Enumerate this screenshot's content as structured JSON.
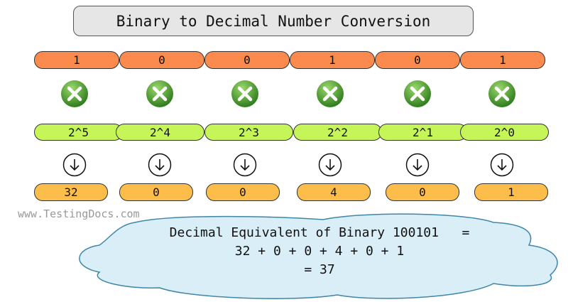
{
  "title": "Binary to Decimal Number Conversion",
  "columns": [
    {
      "bit": "1",
      "power": "2^5",
      "value": "32"
    },
    {
      "bit": "0",
      "power": "2^4",
      "value": "0"
    },
    {
      "bit": "0",
      "power": "2^3",
      "value": "0"
    },
    {
      "bit": "1",
      "power": "2^2",
      "value": "4"
    },
    {
      "bit": "0",
      "power": "2^1",
      "value": "0"
    },
    {
      "bit": "1",
      "power": "2^0",
      "value": "1"
    }
  ],
  "icons": {
    "operator": "multiply-icon",
    "step": "arrow-down-icon"
  },
  "watermark": "www.TestingDocs.com",
  "result": {
    "line1": "Decimal Equivalent of Binary 100101   =",
    "line2": "32 + 0 + 0 + 4 + 0 + 1",
    "line3": "= 37"
  },
  "colors": {
    "bit": "#fb8a4e",
    "power": "#c6f55a",
    "value": "#fdbd4a",
    "title_bg": "#e6e6e6",
    "cloud_bg": "#daeef8",
    "cloud_stroke": "#3f86a8"
  }
}
